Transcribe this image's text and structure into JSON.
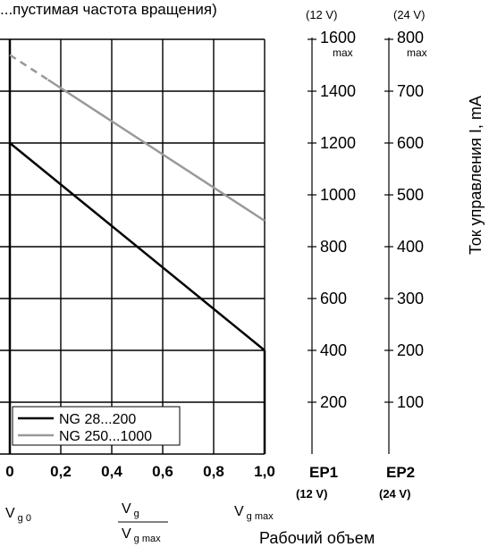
{
  "chart_data": {
    "type": "line",
    "title": "...пустимая частота вращения)",
    "x": {
      "ticks": [
        "0",
        "0,2",
        "0,4",
        "0,6",
        "0,8",
        "1,0"
      ],
      "range": [
        0,
        1.0
      ]
    },
    "x_sublabels": {
      "left": "V",
      "left_sub": "g 0",
      "frac_num": "V",
      "frac_num_sub": "g",
      "frac_den": "V",
      "frac_den_sub": "g max",
      "right": "V",
      "right_sub": "g max"
    },
    "xlabel": "Рабочий объем",
    "ylabel": "Ток управления I, mA",
    "axis_ep1": {
      "header": "(12 V)",
      "name": "EP1",
      "footer": "(12 V)",
      "ticks": [
        200,
        400,
        600,
        800,
        1000,
        1200,
        1400,
        1600
      ],
      "max_label": "max",
      "range": [
        0,
        1600
      ]
    },
    "axis_ep2": {
      "header": "(24 V)",
      "name": "EP2",
      "footer": "(24 V)",
      "ticks": [
        100,
        200,
        300,
        400,
        500,
        600,
        700,
        800
      ],
      "max_label": "max",
      "range": [
        0,
        800
      ]
    },
    "series": [
      {
        "name": "NG 28...200",
        "color": "#000000",
        "points": [
          [
            0,
            1200
          ],
          [
            1.0,
            400
          ]
        ],
        "vertical_to": 1600,
        "final_drop_to": 0
      },
      {
        "name": "NG 250...1000",
        "color": "#999999",
        "points": [
          [
            0,
            1540
          ],
          [
            1.0,
            900
          ]
        ],
        "dashed_until": 0.15
      }
    ],
    "grid": true,
    "legend": "bottom-left"
  }
}
